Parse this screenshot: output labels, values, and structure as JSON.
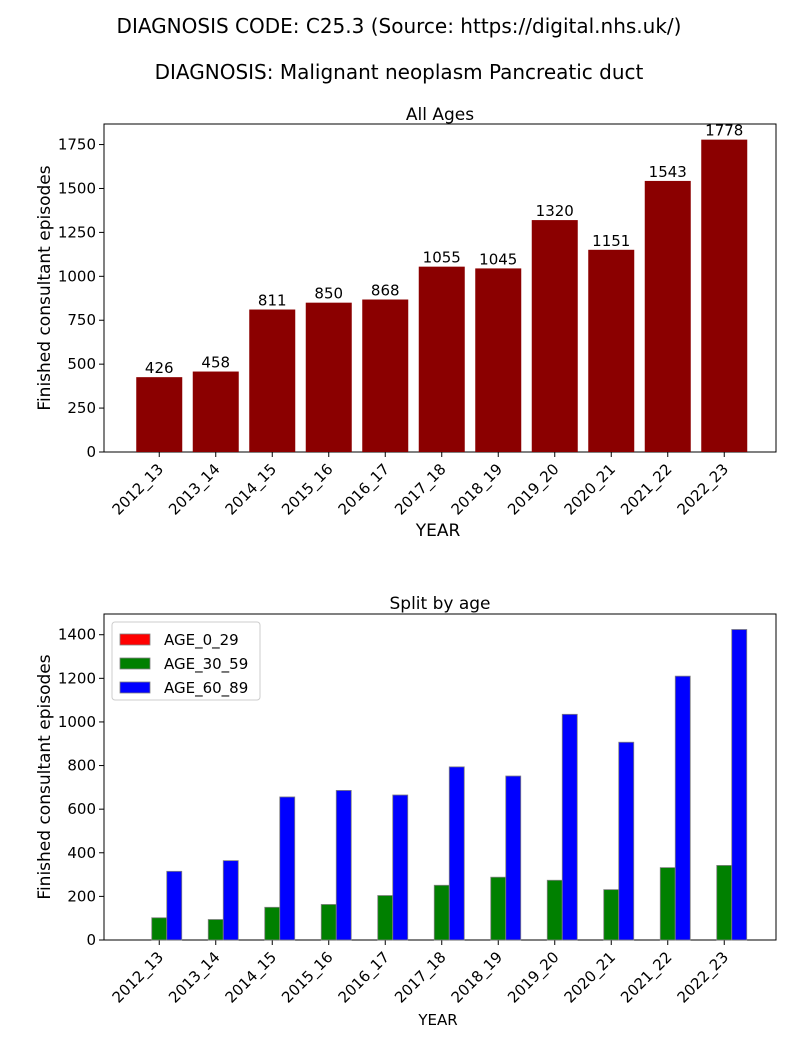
{
  "suptitle_line1": "DIAGNOSIS CODE: C25.3 (Source: https://digital.nhs.uk/)",
  "suptitle_line2": "DIAGNOSIS: Malignant neoplasm Pancreatic duct",
  "colors": {
    "all_ages": "#8b0000",
    "AGE_0_29": "#ff0000",
    "AGE_30_59": "#008000",
    "AGE_60_89": "#0000ff",
    "bar_edge": "#808080"
  },
  "chart_data": [
    {
      "type": "bar",
      "title": "All Ages",
      "xlabel": "YEAR",
      "ylabel": "Finished consultant episodes",
      "categories": [
        "2012_13",
        "2013_14",
        "2014_15",
        "2015_16",
        "2016_17",
        "2017_18",
        "2018_19",
        "2019_20",
        "2020_21",
        "2021_22",
        "2022_23"
      ],
      "values": [
        426,
        458,
        811,
        850,
        868,
        1055,
        1045,
        1320,
        1151,
        1543,
        1778
      ],
      "data_labels": [
        "426",
        "458",
        "811",
        "850",
        "868",
        "1055",
        "1045",
        "1320",
        "1151",
        "1543",
        "1778"
      ],
      "yticks": [
        0,
        250,
        500,
        750,
        1000,
        1250,
        1500,
        1750
      ],
      "ylim": [
        0,
        1867
      ],
      "grid": false
    },
    {
      "type": "bar",
      "title": "Split by age",
      "xlabel": "YEAR",
      "ylabel": "Finished consultant episodes",
      "categories": [
        "2012_13",
        "2013_14",
        "2014_15",
        "2015_16",
        "2016_17",
        "2017_18",
        "2018_19",
        "2019_20",
        "2020_21",
        "2021_22",
        "2022_23"
      ],
      "series": [
        {
          "name": "AGE_0_29",
          "values": [
            0,
            0,
            0,
            0,
            0,
            0,
            0,
            0,
            0,
            0,
            0
          ]
        },
        {
          "name": "AGE_30_59",
          "values": [
            102,
            94,
            150,
            163,
            204,
            251,
            288,
            274,
            231,
            332,
            342
          ]
        },
        {
          "name": "AGE_60_89",
          "values": [
            315,
            364,
            656,
            686,
            665,
            794,
            752,
            1035,
            907,
            1210,
            1424
          ]
        }
      ],
      "yticks": [
        0,
        200,
        400,
        600,
        800,
        1000,
        1200,
        1400
      ],
      "ylim": [
        0,
        1495
      ],
      "legend": "top-left",
      "grid": false
    }
  ]
}
